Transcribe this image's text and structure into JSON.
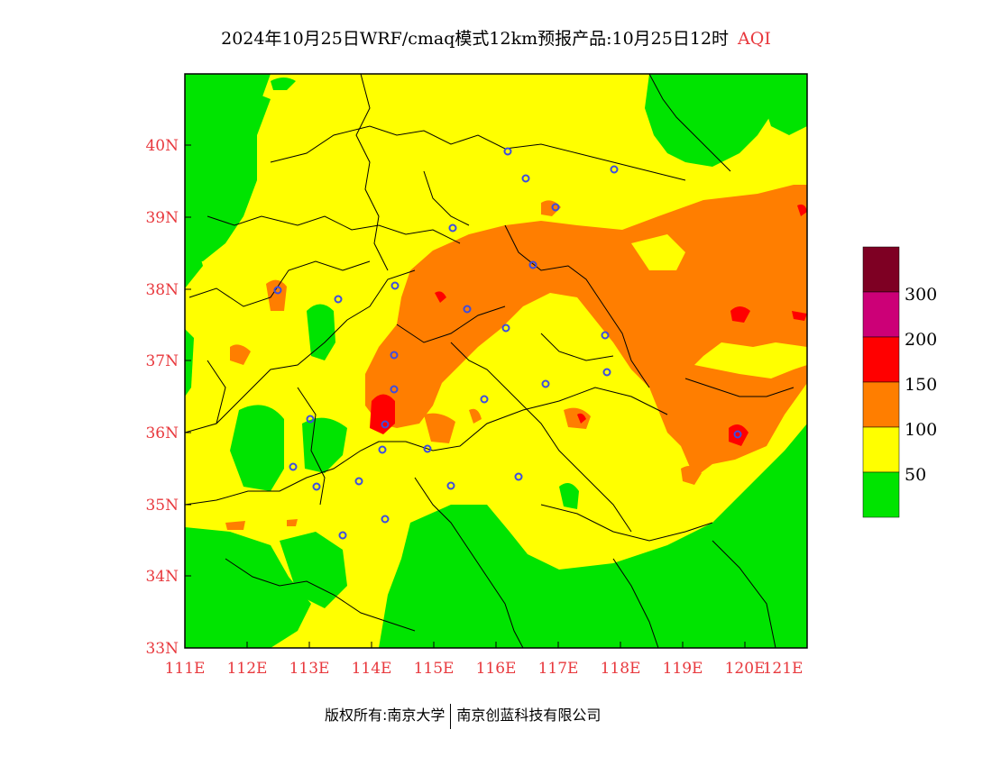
{
  "title": {
    "main": "2024年10月25日WRF/cmaq模式12km预报产品:10月25日12时",
    "variable": "AQI"
  },
  "map": {
    "lon_ticks": [
      "111E",
      "112E",
      "113E",
      "114E",
      "115E",
      "116E",
      "117E",
      "118E",
      "119E",
      "120E",
      "121E"
    ],
    "lat_ticks": [
      "33N",
      "34N",
      "35N",
      "36N",
      "37N",
      "38N",
      "39N",
      "40N"
    ],
    "colors": {
      "good": "#00e400",
      "moderate": "#ffff00",
      "usg": "#ff7e00",
      "unhealthy": "#ff0000",
      "very_unhealthy": "#cc0077",
      "hazardous": "#7e0023",
      "station": "#3d4de0",
      "tick": "#e8383d"
    }
  },
  "legend": {
    "labels": [
      "50",
      "100",
      "150",
      "200",
      "300"
    ]
  },
  "footer": {
    "copyright": "版权所有:南京大学",
    "company": "南京创蓝科技有限公司"
  }
}
